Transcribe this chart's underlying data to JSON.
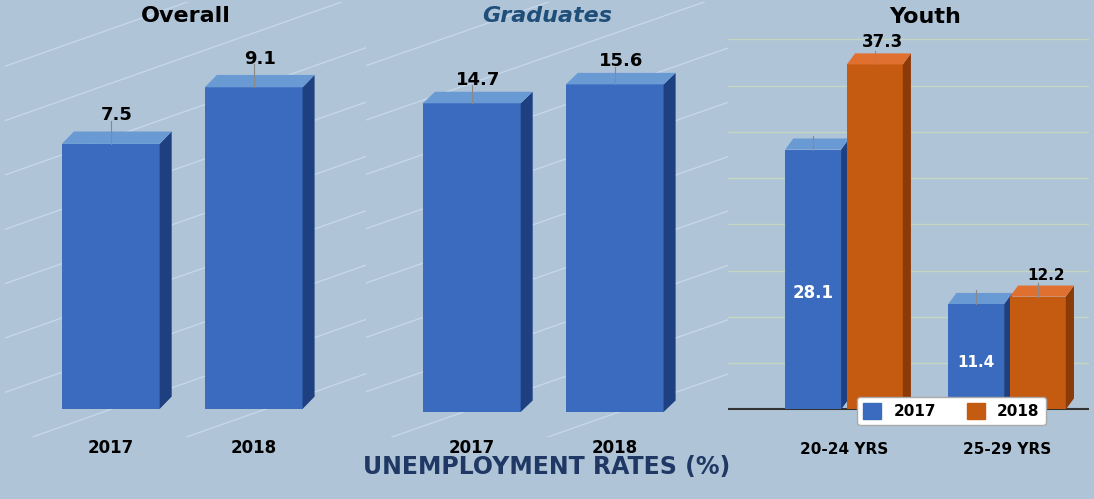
{
  "overall": {
    "years": [
      "2017",
      "2018"
    ],
    "values": [
      7.5,
      9.1
    ],
    "bg_color": "#dae5f0",
    "title": "Overall",
    "title_color": "#000000",
    "bar_color": "#3a6bbf",
    "bar_right_color": "#1e4080",
    "bar_top_color": "#6a9ad4"
  },
  "graduates": {
    "years": [
      "2017",
      "2018"
    ],
    "values": [
      14.7,
      15.6
    ],
    "bg_color": "#fdf5d8",
    "title": "Graduates",
    "title_color": "#1f4e79",
    "bar_color": "#3a6bbf",
    "bar_right_color": "#1e4080",
    "bar_top_color": "#6a9ad4"
  },
  "youth": {
    "categories": [
      "20-24 YRS",
      "25-29 YRS"
    ],
    "values_2017": [
      28.1,
      11.4
    ],
    "values_2018": [
      37.3,
      12.2
    ],
    "bg_color": "#e2edda",
    "title": "Youth",
    "title_color": "#000000",
    "bar_color_2017": "#3a6bbf",
    "bar_color_2018": "#c55a11",
    "bar_right_2017": "#1e4080",
    "bar_right_2018": "#8b3a08",
    "bar_top_2017": "#6a9ad4",
    "bar_top_2018": "#e07030"
  },
  "footer_text": "UNEMPLOYMENT RATES (%)",
  "footer_bg": "#b0c4d8",
  "footer_color": "#1f3864",
  "border_color": "#888888",
  "diag_line_color": "#c8d8ec",
  "horiz_line_color": "#c5d5c0"
}
